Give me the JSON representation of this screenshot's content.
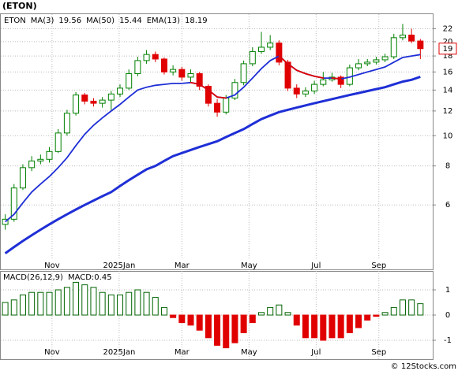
{
  "title": "(ETON)",
  "footer": "© 12Stocks.com",
  "chart_data": [
    {
      "type": "candlestick",
      "symbol": "ETON",
      "legend": [
        {
          "name": "MA(3)",
          "value": 19.56
        },
        {
          "name": "MA(50)",
          "value": 15.44
        },
        {
          "name": "EMA(13)",
          "value": 18.19
        }
      ],
      "last_price": 19,
      "log_scale": true,
      "grid": true,
      "up_color": "#008000",
      "down_color": "#e00000",
      "xlim": [
        -0.5,
        48.4
      ],
      "xticks": [
        {
          "value": 5.3,
          "label": "Nov"
        },
        {
          "value": 12.9,
          "label": "2025Jan"
        },
        {
          "value": 20,
          "label": "Mar"
        },
        {
          "value": 27.6,
          "label": "May"
        },
        {
          "value": 35.2,
          "label": "Jul"
        },
        {
          "value": 42.3,
          "label": "Sep"
        }
      ],
      "ylim": [
        4,
        24.5
      ],
      "yticks": [
        6,
        8,
        10,
        12,
        14,
        16,
        18,
        20,
        22
      ],
      "open": [
        5.2,
        5.4,
        6.8,
        7.9,
        8.3,
        8.4,
        8.9,
        10.2,
        11.8,
        13.5,
        12.9,
        12.7,
        13.0,
        13.6,
        14.2,
        15.8,
        17.4,
        18.2,
        17.6,
        16.0,
        16.3,
        15.4,
        15.8,
        14.4,
        12.7,
        11.9,
        13.2,
        14.8,
        17.0,
        18.6,
        19.2,
        19.8,
        17.2,
        14.2,
        13.6,
        13.9,
        14.6,
        15.1,
        15.4,
        14.6,
        16.5,
        17.0,
        17.2,
        17.5,
        17.9,
        20.6,
        21.0,
        20.1
      ],
      "high": [
        5.6,
        7.0,
        8.1,
        8.6,
        8.7,
        9.2,
        10.5,
        12.1,
        13.8,
        13.7,
        13.2,
        13.3,
        13.9,
        14.6,
        16.3,
        17.9,
        18.8,
        18.6,
        17.8,
        16.8,
        16.6,
        16.3,
        16.0,
        14.6,
        13.1,
        13.5,
        15.2,
        17.4,
        19.2,
        21.5,
        21.0,
        20.2,
        17.5,
        14.6,
        14.3,
        15.0,
        16.0,
        15.9,
        15.6,
        16.9,
        17.6,
        17.6,
        17.9,
        18.3,
        21.2,
        22.8,
        22.0,
        20.4
      ],
      "low": [
        5.0,
        5.3,
        6.7,
        7.7,
        8.1,
        8.2,
        8.8,
        10.0,
        11.6,
        12.6,
        12.4,
        12.3,
        12.1,
        13.3,
        14.0,
        15.5,
        17.0,
        17.2,
        15.7,
        15.6,
        15.0,
        14.8,
        14.0,
        12.4,
        11.5,
        11.7,
        13.0,
        14.5,
        16.7,
        18.3,
        18.8,
        16.8,
        13.9,
        13.2,
        13.3,
        13.6,
        14.4,
        14.9,
        14.2,
        14.4,
        16.2,
        16.7,
        16.9,
        17.2,
        17.6,
        20.2,
        19.8,
        17.6
      ],
      "close": [
        5.4,
        6.8,
        7.9,
        8.3,
        8.4,
        8.9,
        10.2,
        11.8,
        13.5,
        12.9,
        12.7,
        13.0,
        13.6,
        14.2,
        15.8,
        17.4,
        18.2,
        17.6,
        16.0,
        16.3,
        15.4,
        15.8,
        14.4,
        12.7,
        11.9,
        13.2,
        14.8,
        17.0,
        18.6,
        19.2,
        19.8,
        17.2,
        14.2,
        13.6,
        13.9,
        14.6,
        15.1,
        15.4,
        14.6,
        16.5,
        17.0,
        17.2,
        17.5,
        17.9,
        20.6,
        21.0,
        20.1,
        19.0
      ],
      "series": [
        {
          "name": "EMA(13)",
          "color": "#1f2fd6",
          "down_color": "#e00000",
          "width": 1.8,
          "values": [
            5.3,
            5.6,
            6.1,
            6.6,
            7.0,
            7.4,
            7.9,
            8.5,
            9.3,
            10.1,
            10.8,
            11.4,
            12.0,
            12.6,
            13.3,
            14.0,
            14.3,
            14.5,
            14.6,
            14.7,
            14.7,
            14.8,
            14.6,
            14.0,
            13.3,
            13.2,
            13.5,
            14.3,
            15.3,
            16.4,
            17.4,
            18.0,
            17.0,
            16.2,
            15.8,
            15.5,
            15.3,
            15.3,
            15.2,
            15.4,
            15.7,
            16.0,
            16.3,
            16.6,
            17.2,
            17.8,
            18.0,
            18.19
          ]
        },
        {
          "name": "MA(50)",
          "color": "#1f2fd6",
          "width": 3,
          "values": [
            4.2,
            4.4,
            4.6,
            4.8,
            5.0,
            5.2,
            5.4,
            5.6,
            5.8,
            6.0,
            6.2,
            6.4,
            6.6,
            6.9,
            7.2,
            7.5,
            7.8,
            8.0,
            8.3,
            8.6,
            8.8,
            9.0,
            9.2,
            9.4,
            9.6,
            9.9,
            10.2,
            10.5,
            10.9,
            11.3,
            11.6,
            11.9,
            12.1,
            12.3,
            12.5,
            12.7,
            12.9,
            13.1,
            13.3,
            13.5,
            13.7,
            13.9,
            14.1,
            14.3,
            14.6,
            14.9,
            15.1,
            15.44
          ]
        }
      ]
    },
    {
      "type": "bar",
      "indicator": "MACD(26,12,9)",
      "last_label": "MACD:0.45",
      "grid": true,
      "up_color": "#006400",
      "down_color": "#e00000",
      "xlim": [
        -0.5,
        48.4
      ],
      "xticks": [
        {
          "value": 5.3,
          "label": "Nov"
        },
        {
          "value": 12.9,
          "label": "2025Jan"
        },
        {
          "value": 20,
          "label": "Mar"
        },
        {
          "value": 27.6,
          "label": "May"
        },
        {
          "value": 35.2,
          "label": "Jul"
        },
        {
          "value": 42.3,
          "label": "Sep"
        }
      ],
      "ylim": [
        -1.75,
        1.75
      ],
      "yticks": [
        1,
        0,
        -1
      ],
      "values": [
        0.5,
        0.6,
        0.8,
        0.9,
        0.9,
        0.9,
        1.0,
        1.1,
        1.3,
        1.2,
        1.1,
        0.9,
        0.8,
        0.8,
        0.9,
        1.0,
        0.9,
        0.7,
        0.3,
        -0.1,
        -0.3,
        -0.4,
        -0.6,
        -0.9,
        -1.2,
        -1.3,
        -1.1,
        -0.7,
        -0.3,
        0.1,
        0.3,
        0.4,
        0.1,
        -0.4,
        -0.9,
        -0.9,
        -1.0,
        -0.9,
        -0.9,
        -0.7,
        -0.5,
        -0.2,
        -0.05,
        0.1,
        0.3,
        0.6,
        0.6,
        0.45
      ]
    }
  ]
}
